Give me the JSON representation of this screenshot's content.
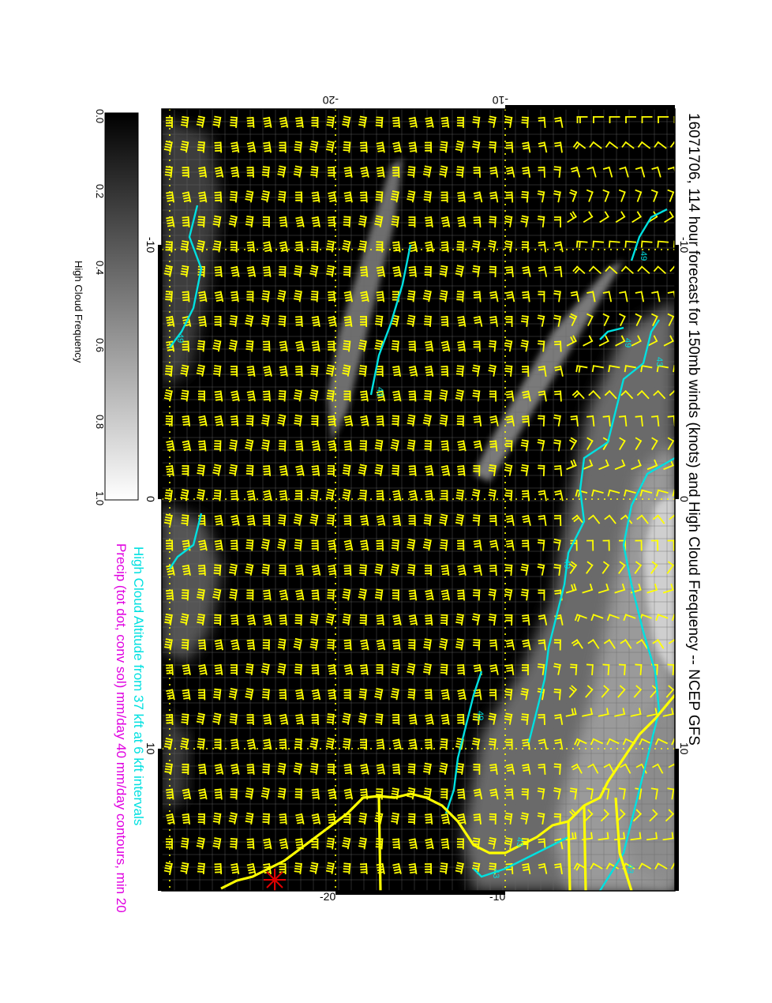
{
  "title": "16071706, 114 hour forecast for 150mb winds (knots) and High Cloud Frequency -- NCEP GFS",
  "subtitle_cloud_altitude": "High Cloud Altitude from 37 kft at 6 kft intervals",
  "subtitle_precip": "Precip (tot dot, conv sol) mm/day 40 mm/day contours, min 20",
  "colorbar": {
    "label": "High Cloud Frequency",
    "ticks": [
      "0.0",
      "0.2",
      "0.4",
      "0.6",
      "0.8",
      "1.0"
    ],
    "colors": {
      "low": "#000000",
      "high": "#ffffff"
    }
  },
  "map": {
    "lon_ticks_top": [
      "-20",
      "-10"
    ],
    "lon_ticks_bottom": [
      "-20",
      "-10"
    ],
    "lat_ticks_left": [
      "-10",
      "0",
      "10"
    ],
    "lat_ticks_right": [
      "-10",
      "0",
      "10"
    ],
    "contour_labels": [
      "49",
      "43",
      "49",
      "49",
      "43",
      "49",
      "49",
      "43",
      "43",
      "43"
    ],
    "colors": {
      "wind_barbs": "#ffff00",
      "coastline": "#ffff00",
      "cloud_altitude_contours": "#00e0e0",
      "grid": "#ffff00",
      "marker": "#e00000"
    }
  }
}
